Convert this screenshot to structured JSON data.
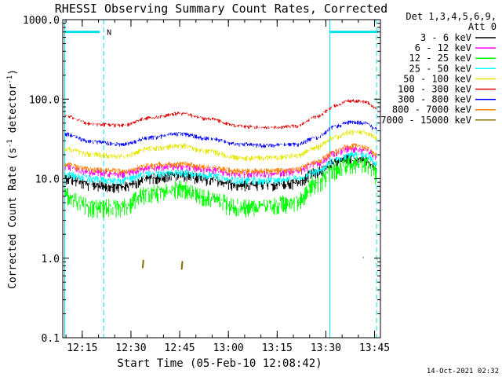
{
  "chart_data": {
    "type": "line",
    "title": "RHESSI Observing Summary Count Rates, Corrected",
    "xlabel": "Start Time (05-Feb-10 12:08:42)",
    "ylabel_main": "Corrected Count Rate (s",
    "ylabel_sup1": "-1",
    "ylabel_mid": " detector",
    "ylabel_sup2": "-1",
    "ylabel_end": ")",
    "y_scale": "log",
    "ylim": [
      0.1,
      1000.0
    ],
    "xlim_minutes": [
      12.15,
      13.78
    ],
    "y_ticks": [
      {
        "v": 1000,
        "label": "1000.0"
      },
      {
        "v": 100,
        "label": "100.0"
      },
      {
        "v": 10,
        "label": "10.0"
      },
      {
        "v": 1,
        "label": "1.0"
      },
      {
        "v": 0.1,
        "label": "0.1"
      }
    ],
    "x_ticks": [
      {
        "h": 12.25,
        "label": "12:15"
      },
      {
        "h": 12.5,
        "label": "12:30"
      },
      {
        "h": 12.75,
        "label": "12:45"
      },
      {
        "h": 13.0,
        "label": "13:00"
      },
      {
        "h": 13.25,
        "label": "13:15"
      },
      {
        "h": 13.5,
        "label": "13:30"
      },
      {
        "h": 13.75,
        "label": "13:45"
      }
    ],
    "legend_header": [
      "Det 1,3,4,5,6,9,",
      "Att 0"
    ],
    "legend_position": "top-right",
    "series": [
      {
        "name": "3 - 6 keV",
        "color": "#000000",
        "x": [
          12.15,
          12.3,
          12.45,
          12.6,
          12.75,
          12.9,
          13.05,
          13.2,
          13.35,
          13.45,
          13.55,
          13.62,
          13.7,
          13.76
        ],
        "values": [
          11,
          9,
          8.5,
          11,
          12,
          10.5,
          9,
          9,
          9.5,
          13,
          17,
          19,
          19,
          15
        ],
        "noise": 0.18
      },
      {
        "name": "6 - 12 keV",
        "color": "#ff00ff",
        "x": [
          12.15,
          12.3,
          12.45,
          12.6,
          12.75,
          12.9,
          13.05,
          13.2,
          13.35,
          13.45,
          13.55,
          13.62,
          13.7,
          13.76
        ],
        "values": [
          15,
          12.5,
          12,
          14.5,
          15,
          13.5,
          12,
          12,
          13,
          16,
          22,
          25,
          24,
          20
        ],
        "noise": 0.12
      },
      {
        "name": "12 - 25 keV",
        "color": "#00ff00",
        "x": [
          12.15,
          12.3,
          12.45,
          12.6,
          12.75,
          12.9,
          13.05,
          13.2,
          13.35,
          13.45,
          13.55,
          13.62,
          13.7,
          13.76
        ],
        "values": [
          7,
          5,
          5,
          7.5,
          8.5,
          6.5,
          5,
          5,
          6,
          10,
          15,
          17.5,
          17,
          13
        ],
        "noise": 0.3
      },
      {
        "name": "25 - 50 keV",
        "color": "#00ffff",
        "x": [
          12.15,
          12.3,
          12.45,
          12.6,
          12.75,
          12.9,
          13.05,
          13.2,
          13.35,
          13.45,
          13.55,
          13.62,
          13.7,
          13.76
        ],
        "values": [
          12,
          10.5,
          10,
          12,
          12.5,
          11.5,
          10,
          10,
          10.5,
          13,
          18,
          21,
          21,
          17
        ],
        "noise": 0.12
      },
      {
        "name": "50 - 100 keV",
        "color": "#e6e600",
        "x": [
          12.15,
          12.3,
          12.45,
          12.6,
          12.75,
          12.9,
          13.05,
          13.2,
          13.35,
          13.45,
          13.55,
          13.62,
          13.7,
          13.76
        ],
        "values": [
          25,
          21,
          20,
          25,
          27,
          23,
          19,
          19,
          20,
          26,
          35,
          40,
          40,
          34
        ],
        "noise": 0.09
      },
      {
        "name": "100 - 300 keV",
        "color": "#e00000",
        "x": [
          12.15,
          12.3,
          12.45,
          12.6,
          12.75,
          12.9,
          13.05,
          13.2,
          13.35,
          13.45,
          13.55,
          13.62,
          13.7,
          13.76
        ],
        "values": [
          65,
          50,
          48,
          60,
          68,
          58,
          47,
          45,
          47,
          62,
          85,
          98,
          96,
          78
        ],
        "noise": 0.06
      },
      {
        "name": "300 - 800 keV",
        "color": "#0000ff",
        "x": [
          12.15,
          12.3,
          12.45,
          12.6,
          12.75,
          12.9,
          13.05,
          13.2,
          13.35,
          13.45,
          13.55,
          13.62,
          13.7,
          13.76
        ],
        "values": [
          38,
          30,
          28,
          34,
          38,
          33,
          28,
          27,
          28,
          34,
          47,
          53,
          52,
          43
        ],
        "noise": 0.07
      },
      {
        "name": "800 - 7000 keV",
        "color": "#ff8000",
        "x": [
          12.15,
          12.3,
          12.45,
          12.6,
          12.75,
          12.9,
          13.05,
          13.2,
          13.35,
          13.45,
          13.55,
          13.62,
          13.7,
          13.76
        ],
        "values": [
          16,
          13.5,
          13,
          15.5,
          16,
          14.5,
          13,
          13,
          13.5,
          17,
          23,
          27,
          26,
          21
        ],
        "noise": 0.1
      },
      {
        "name": "7000 - 15000 keV",
        "color": "#807000",
        "sparse": true,
        "x": [
          12.56,
          12.565,
          12.76,
          12.765,
          13.69,
          13.72
        ],
        "values": [
          0.75,
          0.95,
          0.72,
          0.92,
          1.02,
          1.02
        ]
      }
    ],
    "markers": {
      "solid_cyan_lines": [
        12.16,
        13.52
      ],
      "dashed_cyan_lines": [
        12.36,
        13.76
      ],
      "bars": [
        [
          12.16,
          12.34
        ],
        [
          13.52,
          13.77
        ]
      ],
      "bar_value": 700,
      "bar_label": "N"
    },
    "footer_date": "14-Oct-2021 02:32"
  }
}
